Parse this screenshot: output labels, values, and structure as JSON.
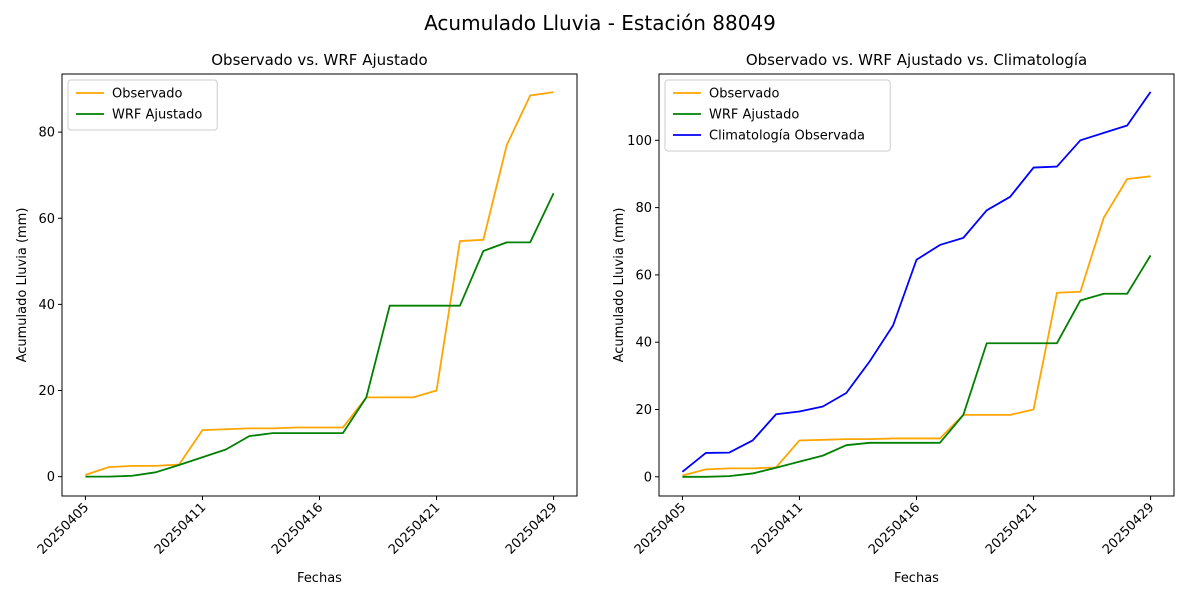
{
  "figure": {
    "suptitle": "Acumulado Lluvia - Estación 88049"
  },
  "chart_data": [
    {
      "type": "line",
      "title": "Observado vs. WRF Ajustado",
      "xlabel": "Fechas",
      "ylabel": "Acumulado Lluvia (mm)",
      "x_tick_labels": [
        "20250405",
        "20250411",
        "20250416",
        "20250421",
        "20250429"
      ],
      "x_tick_day_index": [
        0,
        5,
        10,
        15,
        20
      ],
      "day_range": [
        -1,
        21
      ],
      "ylim": [
        -4.5,
        93.5
      ],
      "y_ticks": [
        0,
        20,
        40,
        60,
        80
      ],
      "legend_position": "top-left",
      "series": [
        {
          "name": "Observado",
          "color": "#ffa500",
          "values": [
            0.4,
            2.2,
            2.5,
            2.5,
            2.8,
            10.8,
            11.0,
            11.2,
            11.2,
            11.4,
            11.4,
            11.4,
            18.4,
            18.4,
            18.4,
            20.0,
            54.7,
            55.0,
            77.0,
            88.5,
            89.3
          ]
        },
        {
          "name": "WRF Ajustado",
          "color": "#008000",
          "values": [
            0.0,
            0.0,
            0.2,
            1.0,
            2.7,
            4.5,
            6.3,
            9.4,
            10.1,
            10.1,
            10.1,
            10.1,
            18.4,
            39.7,
            39.7,
            39.7,
            39.7,
            52.4,
            54.4,
            54.4,
            65.8
          ]
        }
      ]
    },
    {
      "type": "line",
      "title": "Observado vs. WRF Ajustado vs. Climatología",
      "xlabel": "Fechas",
      "ylabel": "Acumulado Lluvia (mm)",
      "x_tick_labels": [
        "20250405",
        "20250411",
        "20250416",
        "20250421",
        "20250429"
      ],
      "x_tick_day_index": [
        0,
        5,
        10,
        15,
        20
      ],
      "day_range": [
        -1,
        21
      ],
      "ylim": [
        -5.7,
        119.7
      ],
      "y_ticks": [
        0,
        20,
        40,
        60,
        80,
        100
      ],
      "legend_position": "top-left",
      "series": [
        {
          "name": "Observado",
          "color": "#ffa500",
          "values": [
            0.4,
            2.2,
            2.5,
            2.5,
            2.8,
            10.8,
            11.0,
            11.2,
            11.2,
            11.4,
            11.4,
            11.4,
            18.4,
            18.4,
            18.4,
            20.0,
            54.7,
            55.0,
            77.0,
            88.5,
            89.3
          ]
        },
        {
          "name": "WRF Ajustado",
          "color": "#008000",
          "values": [
            0.0,
            0.0,
            0.2,
            1.0,
            2.7,
            4.5,
            6.3,
            9.4,
            10.1,
            10.1,
            10.1,
            10.1,
            18.4,
            39.7,
            39.7,
            39.7,
            39.7,
            52.4,
            54.4,
            54.4,
            65.8
          ]
        },
        {
          "name": "Climatología Observada",
          "color": "#0000ff",
          "values": [
            1.5,
            7.1,
            7.2,
            10.8,
            18.6,
            19.4,
            20.9,
            24.9,
            34.3,
            45.0,
            64.5,
            68.9,
            71.0,
            79.2,
            83.2,
            91.9,
            92.2,
            100.0,
            102.2,
            104.4,
            114.4
          ]
        }
      ]
    }
  ]
}
